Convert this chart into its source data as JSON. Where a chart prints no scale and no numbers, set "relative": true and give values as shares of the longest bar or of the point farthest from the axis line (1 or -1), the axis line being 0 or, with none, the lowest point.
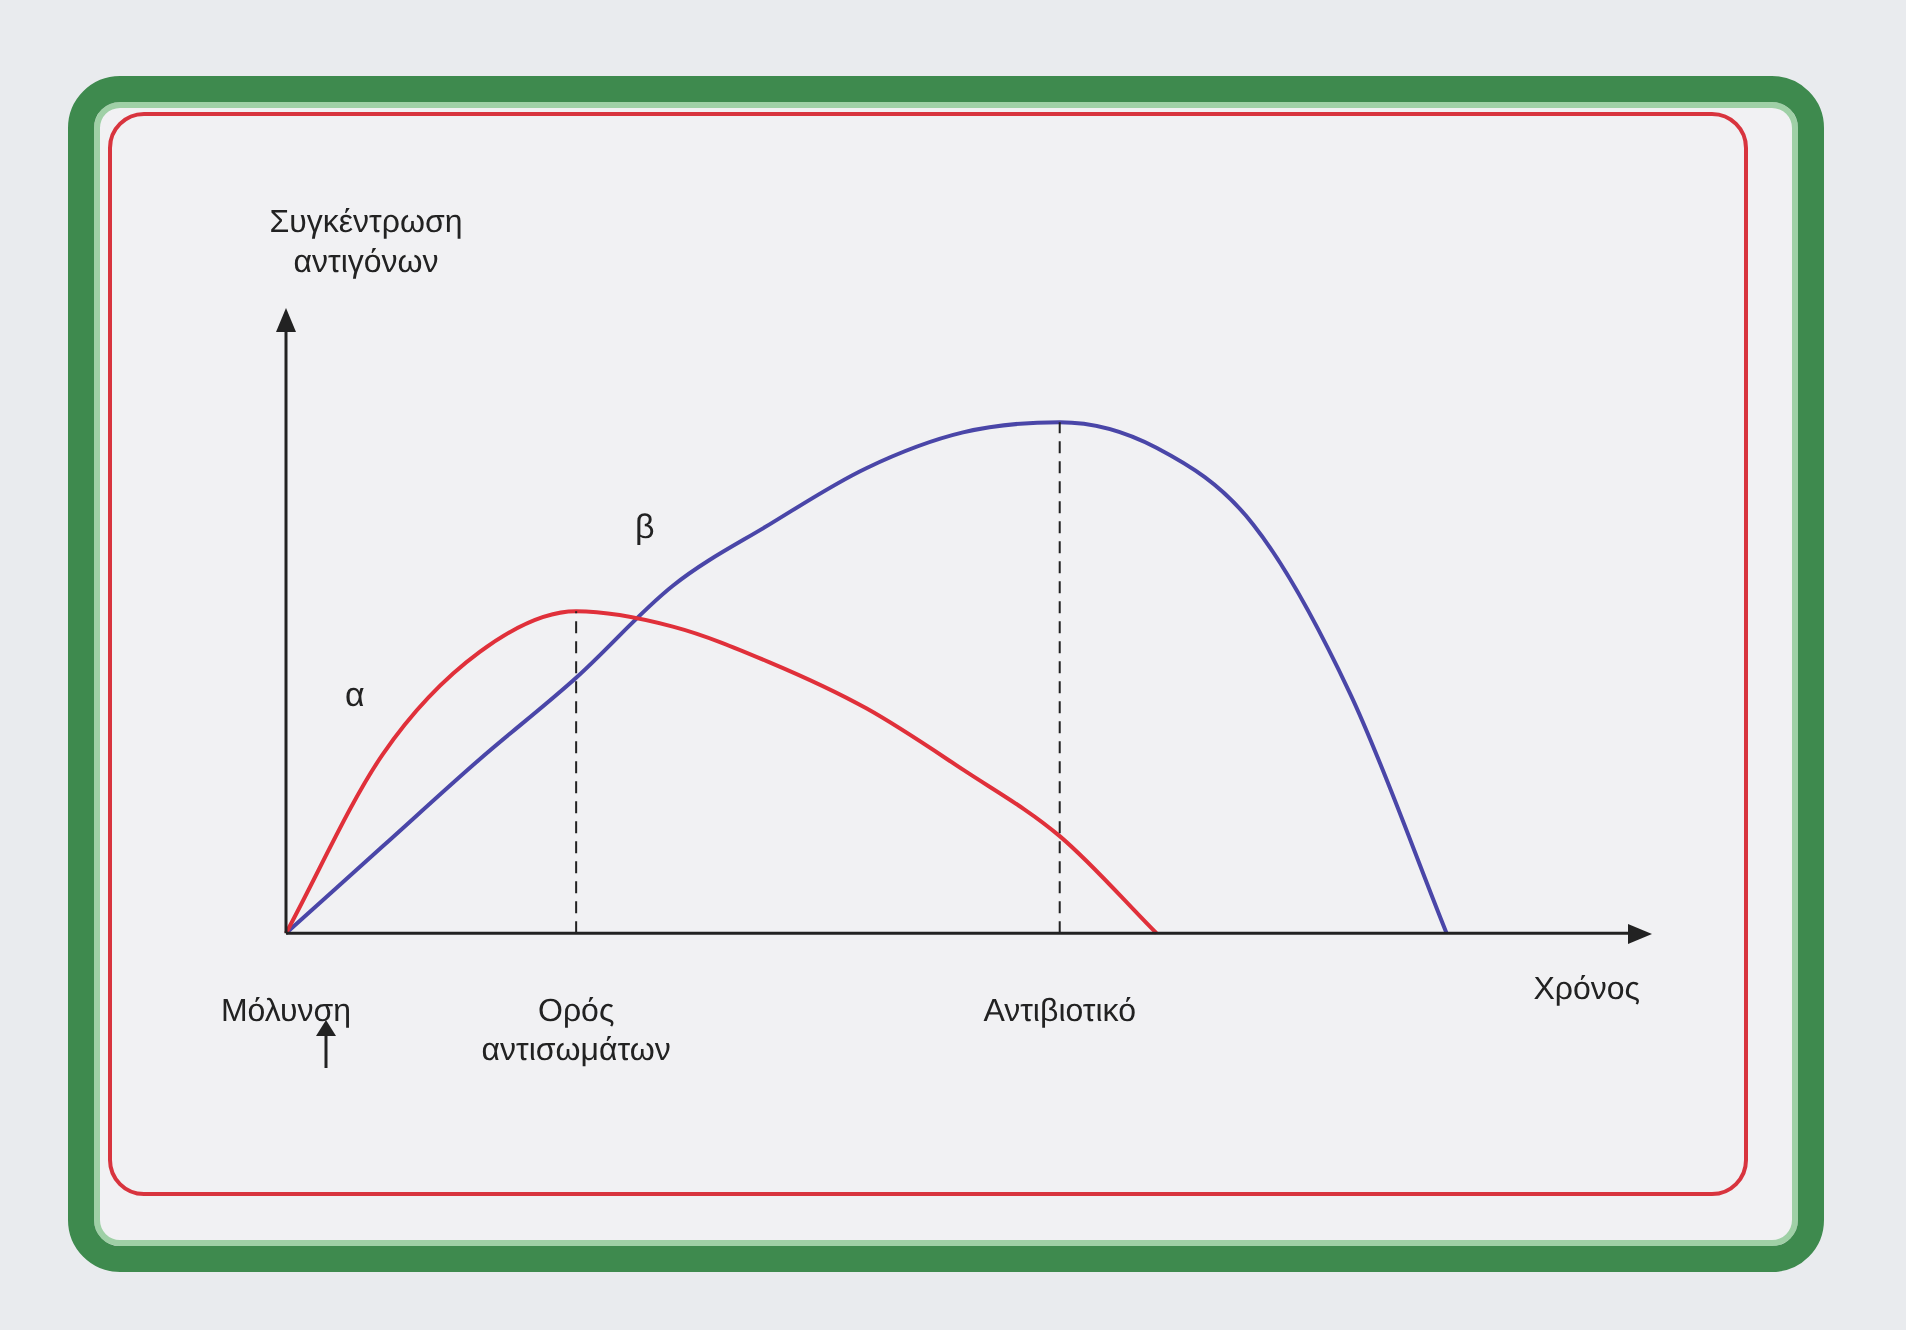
{
  "chart_data": {
    "type": "line",
    "relative": true,
    "xlabel": "Χρόνος",
    "ylabel": "Συγκέντρωση αντιγόνων",
    "categories": [
      "Μόλυνση",
      null,
      null,
      "Ορός αντισωμάτων",
      null,
      null,
      null,
      null,
      "Αντιβιοτικό",
      null,
      null,
      null,
      null,
      null,
      null
    ],
    "series": [
      {
        "name": "α",
        "color": "#e0303a",
        "values": [
          0,
          0.35,
          0.55,
          0.63,
          0.6,
          0.53,
          0.44,
          0.32,
          0.19,
          0,
          null,
          null,
          null,
          null,
          null
        ]
      },
      {
        "name": "β",
        "color": "#4a46a8",
        "values": [
          0,
          0.17,
          0.34,
          0.5,
          0.68,
          0.8,
          0.91,
          0.98,
          1,
          0.95,
          0.8,
          0.47,
          0,
          null,
          null
        ]
      }
    ],
    "ref_lines": [
      {
        "axis": "x",
        "value": "Ορός αντισωμάτων",
        "line_style": "dashed"
      },
      {
        "axis": "x",
        "value": "Αντιβιοτικό",
        "line_style": "dashed"
      }
    ],
    "legend": false,
    "grid": false,
    "marker": "none",
    "line_style": "solid"
  }
}
